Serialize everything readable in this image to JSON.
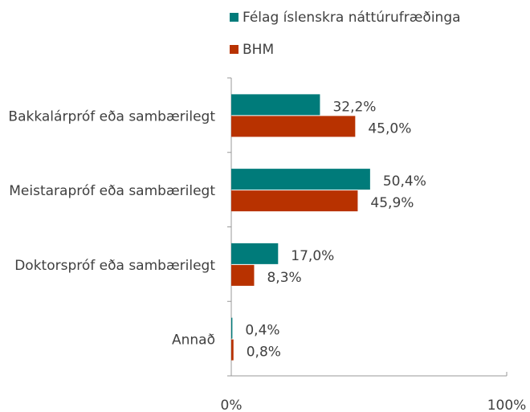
{
  "chart_data": {
    "type": "bar",
    "orientation": "horizontal",
    "categories": [
      "Bakkalárpróf eða sambærilegt",
      "Meistarapróf eða sambærilegt",
      "Doktorspróf eða sambærilegt",
      "Annað"
    ],
    "series": [
      {
        "name": "Félag íslenskra náttúrufræðinga",
        "color": "#007b7a",
        "values": [
          32.2,
          50.4,
          17.0,
          0.4
        ],
        "value_labels": [
          "32,2%",
          "50,4%",
          "17,0%",
          "0,4%"
        ]
      },
      {
        "name": "BHM",
        "color": "#b83200",
        "values": [
          45.0,
          45.9,
          8.3,
          0.8
        ],
        "value_labels": [
          "45,0%",
          "45,9%",
          "8,3%",
          "0,8%"
        ]
      }
    ],
    "xlim": [
      0,
      100
    ],
    "xticks": [
      {
        "value": 0,
        "label": "0%"
      },
      {
        "value": 100,
        "label": "100%"
      }
    ],
    "legend": "top"
  }
}
